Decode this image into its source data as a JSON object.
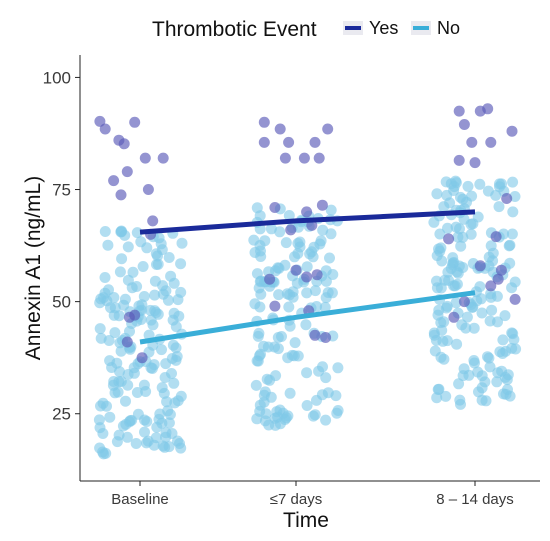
{
  "chart_data": {
    "type": "scatter",
    "xlabel": "Time",
    "ylabel": "Annexin A1 (ng/mL)",
    "categories": [
      "Baseline",
      "≤7 days",
      "8 – 14 days"
    ],
    "yticks": [
      25,
      50,
      75,
      100
    ],
    "ylim": [
      10,
      105
    ],
    "grid": false,
    "legend": {
      "title": "Thrombotic Event",
      "position": "top",
      "entries": [
        {
          "label": "Yes",
          "color": "#1a2a9a"
        },
        {
          "label": "No",
          "color": "#3aaed8"
        }
      ]
    },
    "point_colors": {
      "yes": "#5a5ab8",
      "no": "#7ec8e8"
    },
    "series": [
      {
        "key": "yes",
        "name": "Yes",
        "color": "#1a2a9a",
        "trend": [
          65.5,
          68.0,
          70.0
        ],
        "points": [
          {
            "g": 0,
            "dx": -0.38,
            "y": 90.2
          },
          {
            "g": 0,
            "dx": -0.33,
            "y": 88.5
          },
          {
            "g": 0,
            "dx": -0.2,
            "y": 86.0
          },
          {
            "g": 0,
            "dx": -0.15,
            "y": 85.2
          },
          {
            "g": 0,
            "dx": -0.05,
            "y": 90.0
          },
          {
            "g": 0,
            "dx": 0.05,
            "y": 82.0
          },
          {
            "g": 0,
            "dx": 0.22,
            "y": 82.0
          },
          {
            "g": 0,
            "dx": -0.12,
            "y": 79.0
          },
          {
            "g": 0,
            "dx": -0.25,
            "y": 77.0
          },
          {
            "g": 0,
            "dx": -0.18,
            "y": 73.8
          },
          {
            "g": 0,
            "dx": 0.08,
            "y": 75.0
          },
          {
            "g": 0,
            "dx": 0.12,
            "y": 68.0
          },
          {
            "g": 0,
            "dx": -0.1,
            "y": 46.5
          },
          {
            "g": 0,
            "dx": -0.05,
            "y": 47.0
          },
          {
            "g": 0,
            "dx": -0.12,
            "y": 41.0
          },
          {
            "g": 0,
            "dx": 0.02,
            "y": 37.5
          },
          {
            "g": 0,
            "dx": 0.1,
            "y": 65.0
          },
          {
            "g": 1,
            "dx": -0.3,
            "y": 90.0
          },
          {
            "g": 1,
            "dx": -0.15,
            "y": 88.5
          },
          {
            "g": 1,
            "dx": 0.3,
            "y": 88.5
          },
          {
            "g": 1,
            "dx": -0.3,
            "y": 85.5
          },
          {
            "g": 1,
            "dx": -0.07,
            "y": 85.5
          },
          {
            "g": 1,
            "dx": 0.18,
            "y": 85.5
          },
          {
            "g": 1,
            "dx": -0.1,
            "y": 82.0
          },
          {
            "g": 1,
            "dx": 0.08,
            "y": 82.0
          },
          {
            "g": 1,
            "dx": 0.22,
            "y": 82.0
          },
          {
            "g": 1,
            "dx": -0.2,
            "y": 71.0
          },
          {
            "g": 1,
            "dx": 0.1,
            "y": 70.0
          },
          {
            "g": 1,
            "dx": 0.25,
            "y": 71.5
          },
          {
            "g": 1,
            "dx": -0.05,
            "y": 66.0
          },
          {
            "g": 1,
            "dx": 0.15,
            "y": 67.0
          },
          {
            "g": 1,
            "dx": 0.0,
            "y": 57.0
          },
          {
            "g": 1,
            "dx": 0.2,
            "y": 56.0
          },
          {
            "g": 1,
            "dx": -0.25,
            "y": 55.0
          },
          {
            "g": 1,
            "dx": 0.1,
            "y": 55.5
          },
          {
            "g": 1,
            "dx": 0.12,
            "y": 48.0
          },
          {
            "g": 1,
            "dx": -0.2,
            "y": 49.0
          },
          {
            "g": 1,
            "dx": 0.18,
            "y": 42.5
          },
          {
            "g": 1,
            "dx": 0.28,
            "y": 42.0
          },
          {
            "g": 2,
            "dx": -0.15,
            "y": 92.5
          },
          {
            "g": 2,
            "dx": 0.05,
            "y": 92.5
          },
          {
            "g": 2,
            "dx": 0.12,
            "y": 93.0
          },
          {
            "g": 2,
            "dx": -0.1,
            "y": 89.5
          },
          {
            "g": 2,
            "dx": 0.35,
            "y": 88.0
          },
          {
            "g": 2,
            "dx": -0.03,
            "y": 85.5
          },
          {
            "g": 2,
            "dx": 0.15,
            "y": 85.5
          },
          {
            "g": 2,
            "dx": -0.15,
            "y": 81.5
          },
          {
            "g": 2,
            "dx": 0.0,
            "y": 81.0
          },
          {
            "g": 2,
            "dx": 0.3,
            "y": 73.0
          },
          {
            "g": 2,
            "dx": -0.25,
            "y": 64.0
          },
          {
            "g": 2,
            "dx": 0.2,
            "y": 64.5
          },
          {
            "g": 2,
            "dx": 0.05,
            "y": 58.0
          },
          {
            "g": 2,
            "dx": 0.15,
            "y": 53.5
          },
          {
            "g": 2,
            "dx": -0.1,
            "y": 50.0
          },
          {
            "g": 2,
            "dx": 0.38,
            "y": 50.5
          },
          {
            "g": 2,
            "dx": -0.2,
            "y": 46.5
          },
          {
            "g": 2,
            "dx": 0.22,
            "y": 55.0
          },
          {
            "g": 2,
            "dx": 0.25,
            "y": 57.0
          }
        ]
      },
      {
        "key": "no",
        "name": "No",
        "color": "#3aaed8",
        "trend": [
          41.0,
          46.5,
          52.0
        ],
        "cloud": [
          {
            "g": 0,
            "n": 175,
            "min": 16,
            "max": 66,
            "seed": 11
          },
          {
            "g": 1,
            "n": 150,
            "min": 22,
            "max": 71,
            "seed": 23
          },
          {
            "g": 2,
            "n": 170,
            "min": 27,
            "max": 77,
            "seed": 37
          }
        ]
      }
    ]
  }
}
